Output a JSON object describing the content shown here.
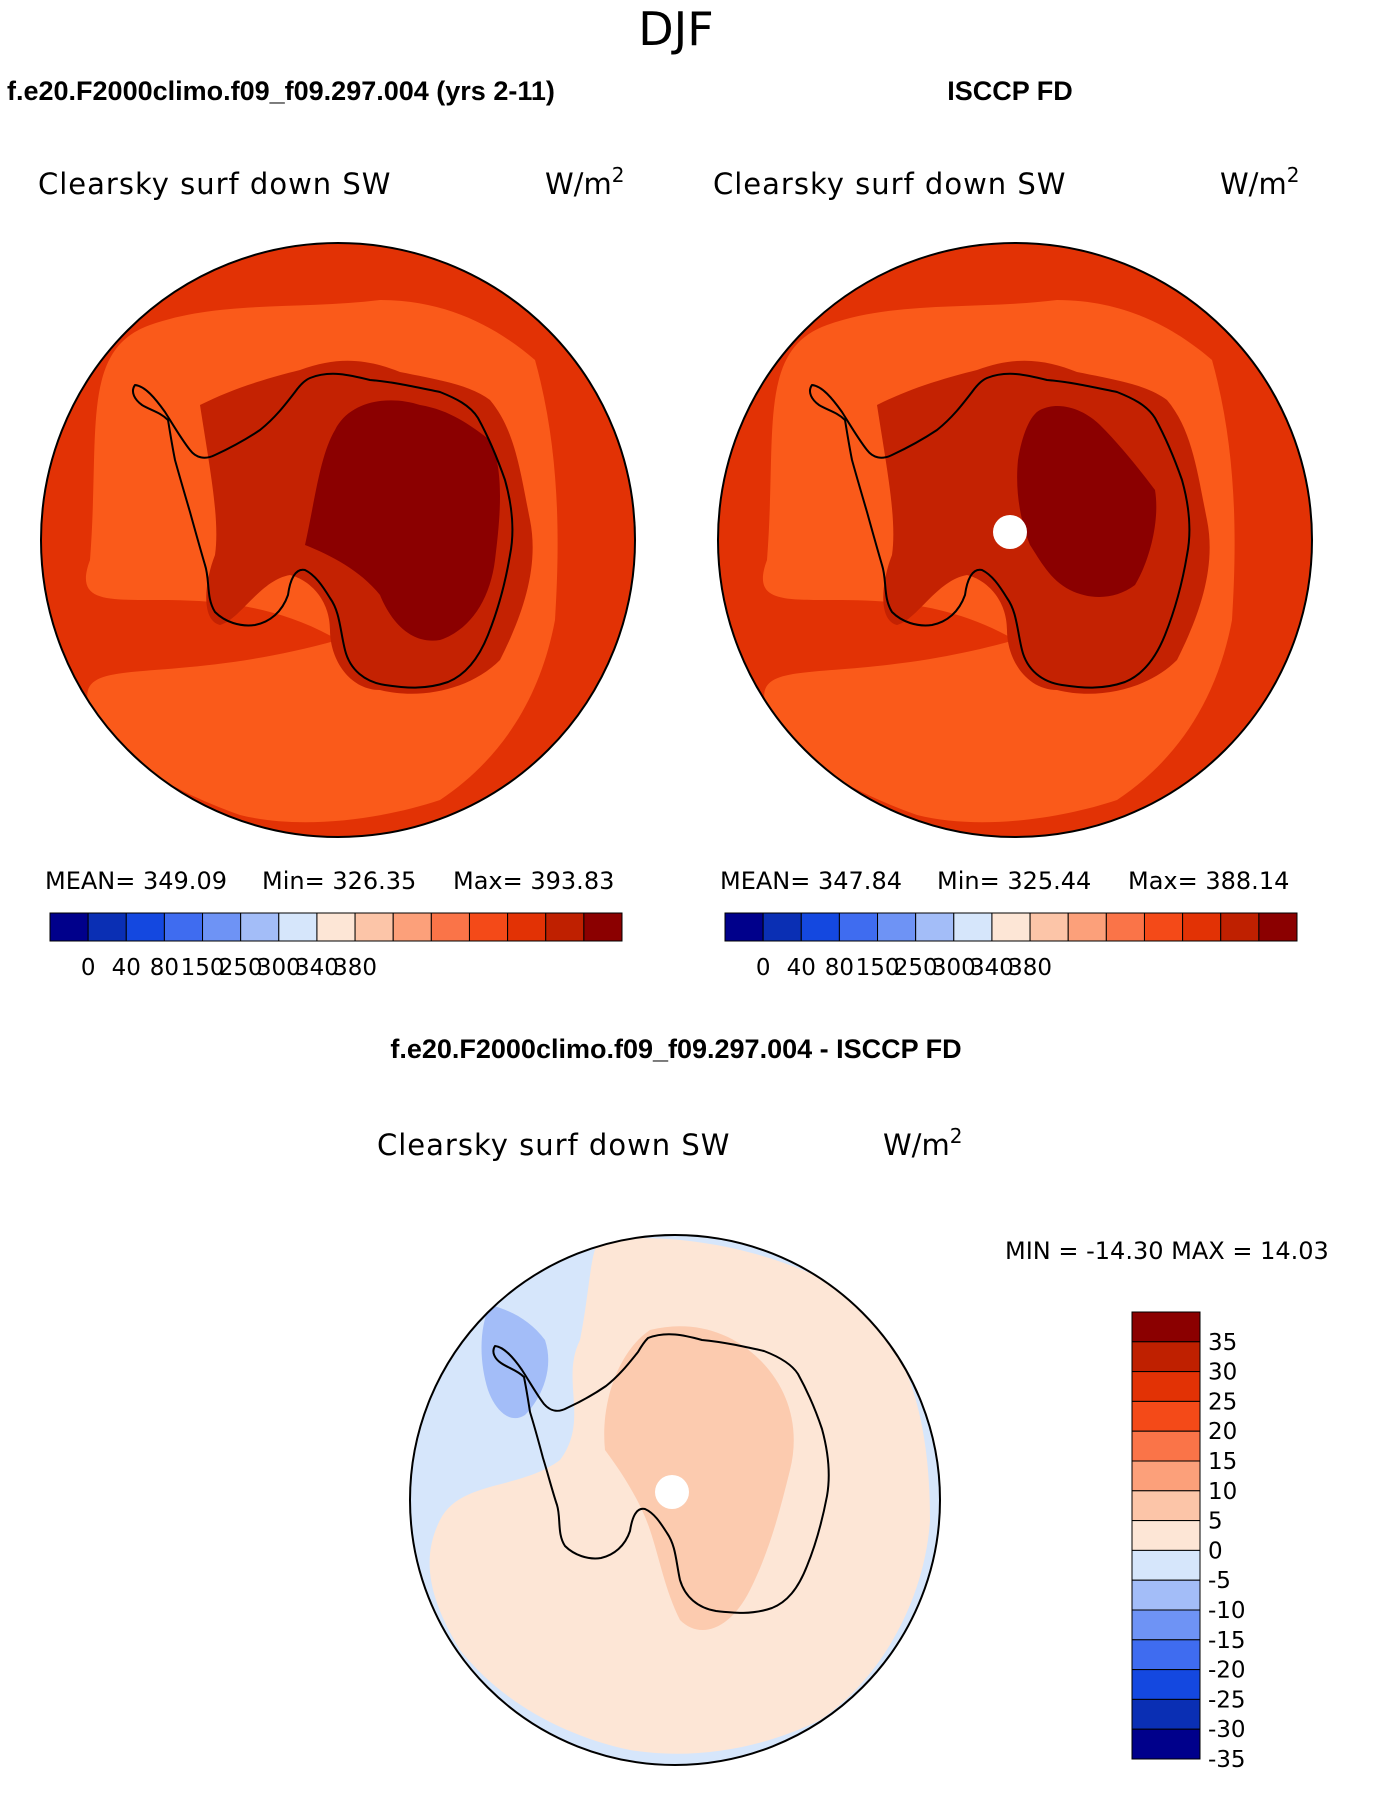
{
  "page_title": "DJF",
  "chart_data": [
    {
      "type": "heatmap",
      "projection": "south-polar-stereographic",
      "title": "f.e20.F2000climo.f09_f09.297.004 (yrs 2-11)",
      "subtitle": "Clearsky surf down SW",
      "units": "W/m",
      "units_exp": "2",
      "stats": {
        "mean_label": "MEAN=",
        "mean": "349.09",
        "min_label": "Min=",
        "min": "326.35",
        "max_label": "Max=",
        "max": "393.83"
      },
      "colorbar_ticks": [
        "0",
        "40",
        "80",
        "150",
        "250",
        "300",
        "340",
        "380"
      ],
      "colorbar_colors": [
        "#00008b",
        "#0a2fb4",
        "#1448e0",
        "#3f6cf0",
        "#6e93f5",
        "#a3bdf8",
        "#d6e6fb",
        "#fde6d6",
        "#fcc5a8",
        "#fca07a",
        "#fa7448",
        "#f44a18",
        "#e23205",
        "#bf2000",
        "#8b0000"
      ],
      "zone_colors": {
        "ocean_outer": "#e23205",
        "ocean_inner": "#fa5a1a",
        "coast": "#c42202",
        "interior": "#8b0000"
      },
      "has_pole_hole": false
    },
    {
      "type": "heatmap",
      "projection": "south-polar-stereographic",
      "title": "ISCCP FD",
      "subtitle": "Clearsky surf down SW",
      "units": "W/m",
      "units_exp": "2",
      "stats": {
        "mean_label": "MEAN=",
        "mean": "347.84",
        "min_label": "Min=",
        "min": "325.44",
        "max_label": "Max=",
        "max": "388.14"
      },
      "colorbar_ticks": [
        "0",
        "40",
        "80",
        "150",
        "250",
        "300",
        "340",
        "380"
      ],
      "colorbar_colors": [
        "#00008b",
        "#0a2fb4",
        "#1448e0",
        "#3f6cf0",
        "#6e93f5",
        "#a3bdf8",
        "#d6e6fb",
        "#fde6d6",
        "#fcc5a8",
        "#fca07a",
        "#fa7448",
        "#f44a18",
        "#e23205",
        "#bf2000",
        "#8b0000"
      ],
      "zone_colors": {
        "ocean_outer": "#e23205",
        "ocean_inner": "#fa5a1a",
        "coast": "#c42202",
        "interior": "#8b0000"
      },
      "has_pole_hole": true
    },
    {
      "type": "heatmap",
      "projection": "south-polar-stereographic",
      "title": "f.e20.F2000climo.f09_f09.297.004 - ISCCP FD",
      "subtitle": "Clearsky surf down SW",
      "units": "W/m",
      "units_exp": "2",
      "stats": {
        "min_label": "MIN =",
        "min": "-14.30",
        "max_label": "MAX =",
        "max": "14.03"
      },
      "colorbar_ticks": [
        "35",
        "30",
        "25",
        "20",
        "15",
        "10",
        "5",
        "0",
        "-5",
        "-10",
        "-15",
        "-20",
        "-25",
        "-30",
        "-35"
      ],
      "colorbar_colors": [
        "#8b0000",
        "#bf2000",
        "#e23205",
        "#f44a18",
        "#fa7448",
        "#fca07a",
        "#fcc5a8",
        "#fde6d6",
        "#d6e6fb",
        "#a3bdf8",
        "#6e93f5",
        "#3f6cf0",
        "#1448e0",
        "#0a2fb4",
        "#00008b"
      ],
      "zone_colors": {
        "ocean_outer": "#d6e6fb",
        "ocean_inner": "#fde6d6",
        "coast": "#fde6d6",
        "interior": "#fcc5a8",
        "neg_patch": "#a3bdf8"
      },
      "has_pole_hole": true
    }
  ]
}
